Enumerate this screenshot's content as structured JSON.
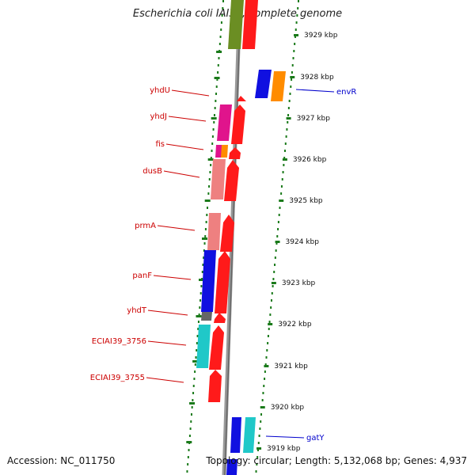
{
  "header": {
    "title": "Escherichia coli IAI39, complete genome"
  },
  "footer": {
    "accession": "Accession: NC_011750",
    "topology": "Topology: circular; Length: 5,132,068 bp; Genes: 4,937"
  },
  "colors": {
    "label_left": "#cc0000",
    "label_right": "#0000cc",
    "tick": "#1a7a1a",
    "backbone": "#888888"
  },
  "scale_ticks": [
    "3929 kbp",
    "3928 kbp",
    "3927 kbp",
    "3926 kbp",
    "3925 kbp",
    "3924 kbp",
    "3923 kbp",
    "3922 kbp",
    "3921 kbp",
    "3920 kbp",
    "3919 kbp"
  ],
  "gene_labels_left": [
    "yhdU",
    "yhdJ",
    "fis",
    "dusB",
    "prmA",
    "panF",
    "yhdT",
    "ECIAI39_3756",
    "ECIAI39_3755"
  ],
  "gene_labels_right": [
    "envR",
    "gatY"
  ]
}
